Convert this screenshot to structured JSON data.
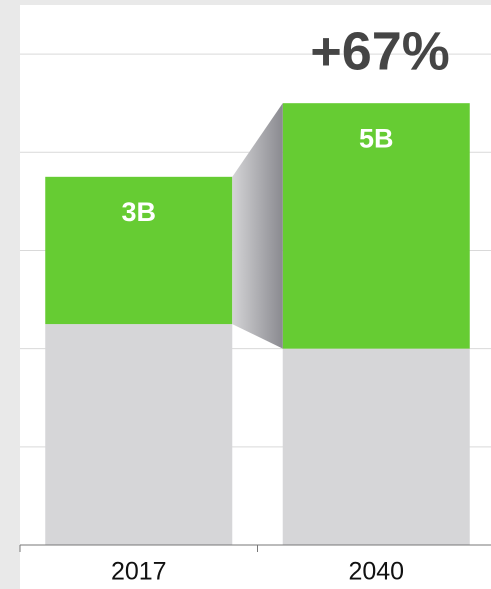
{
  "chart_data": {
    "type": "stacked-bar",
    "categories": [
      "2017",
      "2040"
    ],
    "series": [
      {
        "color": "#d6d6d8",
        "values": [
          4.5,
          4
        ]
      },
      {
        "color": "#66cc33",
        "values": [
          3,
          5
        ],
        "value_labels": [
          "3B",
          "5B"
        ]
      }
    ],
    "annotation": "+67%",
    "ylim": [
      0,
      11
    ],
    "gridlines": [
      2,
      4,
      6,
      8,
      10
    ],
    "grid": true
  }
}
